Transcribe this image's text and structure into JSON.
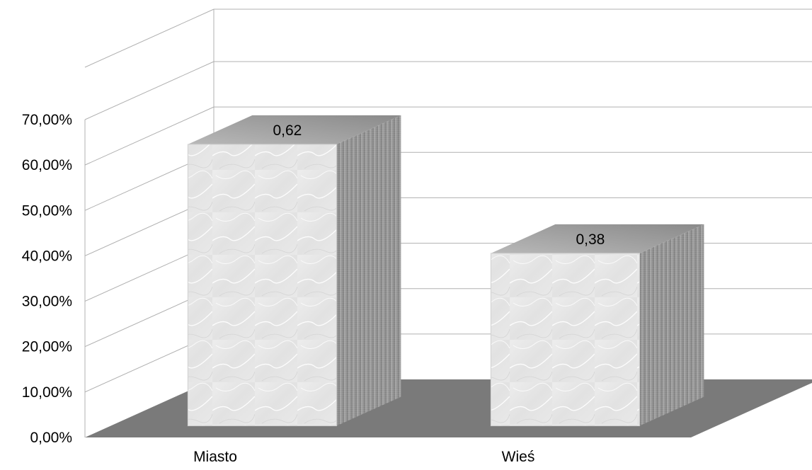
{
  "chart_data": {
    "type": "bar",
    "title": "",
    "xlabel": "",
    "ylabel": "",
    "categories": [
      "Miasto",
      "Wieś"
    ],
    "values": [
      0.62,
      0.38
    ],
    "data_labels": [
      "0,62",
      "0,38"
    ],
    "ylim": [
      0,
      0.7
    ],
    "y_ticks": [
      {
        "value": 0.0,
        "label": "0,00%"
      },
      {
        "value": 0.1,
        "label": "10,00%"
      },
      {
        "value": 0.2,
        "label": "20,00%"
      },
      {
        "value": 0.3,
        "label": "30,00%"
      },
      {
        "value": 0.4,
        "label": "40,00%"
      },
      {
        "value": 0.5,
        "label": "50,00%"
      },
      {
        "value": 0.6,
        "label": "60,00%"
      },
      {
        "value": 0.7,
        "label": "70,00%"
      }
    ],
    "grid": true,
    "legend": "none",
    "style": "3d-columns",
    "colors": {
      "floor": "#7a7a7a",
      "bar_front": "#e4e4e4",
      "bar_side": "#8c8c8c",
      "bar_top": "#9e9e9e",
      "grid": "#b0b0b0"
    }
  }
}
